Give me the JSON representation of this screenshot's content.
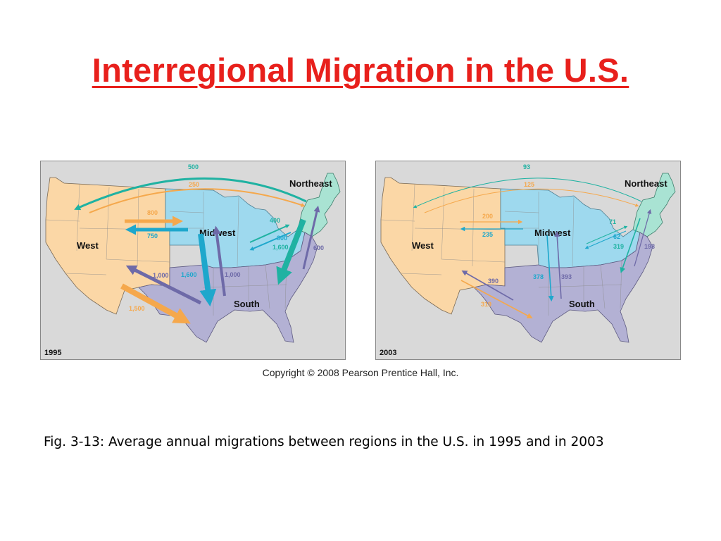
{
  "slide": {
    "title": "Interregional Migration in the U.S.",
    "copyright": "Copyright © 2008 Pearson Prentice Hall, Inc.",
    "caption": "Fig. 3-13: Average annual migrations between regions in the U.S. in 1995 and in 2003"
  },
  "colors": {
    "title": "#e8201c",
    "west_region": "#fbd7a6",
    "midwest_region": "#9ed9ee",
    "northeast_region": "#a9e3d3",
    "south_region": "#b3b1d4",
    "orange_flow": "#f5a84c",
    "blue_flow": "#1ea7cc",
    "teal_flow": "#1fb2a2",
    "purple_flow": "#6e6aa8"
  },
  "maps": [
    {
      "year": "1995",
      "regions": {
        "west": "West",
        "midwest": "Midwest",
        "south": "South",
        "northeast": "Northeast"
      },
      "flows": [
        {
          "from": "Northeast",
          "to": "West",
          "value": "500"
        },
        {
          "from": "West",
          "to": "Northeast",
          "value": "250"
        },
        {
          "from": "West",
          "to": "Midwest",
          "value": "800"
        },
        {
          "from": "Midwest",
          "to": "West",
          "value": "750"
        },
        {
          "from": "Midwest",
          "to": "Northeast",
          "value": "400"
        },
        {
          "from": "Northeast",
          "to": "Midwest",
          "value": "300"
        },
        {
          "from": "Northeast",
          "to": "South",
          "value": "1,600"
        },
        {
          "from": "South",
          "to": "Northeast",
          "value": "600"
        },
        {
          "from": "Midwest",
          "to": "South",
          "value": "1,600"
        },
        {
          "from": "South",
          "to": "Midwest",
          "value": "1,000"
        },
        {
          "from": "South",
          "to": "West",
          "value": "1,000"
        },
        {
          "from": "West",
          "to": "South",
          "value": "1,500"
        }
      ]
    },
    {
      "year": "2003",
      "regions": {
        "west": "West",
        "midwest": "Midwest",
        "south": "South",
        "northeast": "Northeast"
      },
      "flows": [
        {
          "from": "Northeast",
          "to": "West",
          "value": "93"
        },
        {
          "from": "West",
          "to": "Northeast",
          "value": "125"
        },
        {
          "from": "West",
          "to": "Midwest",
          "value": "200"
        },
        {
          "from": "Midwest",
          "to": "West",
          "value": "235"
        },
        {
          "from": "Midwest",
          "to": "Northeast",
          "value": "71"
        },
        {
          "from": "Northeast",
          "to": "Midwest",
          "value": "62"
        },
        {
          "from": "Northeast",
          "to": "South",
          "value": "319"
        },
        {
          "from": "South",
          "to": "Northeast",
          "value": "198"
        },
        {
          "from": "Midwest",
          "to": "South",
          "value": "378"
        },
        {
          "from": "South",
          "to": "Midwest",
          "value": "393"
        },
        {
          "from": "South",
          "to": "West",
          "value": "390"
        },
        {
          "from": "West",
          "to": "South",
          "value": "319"
        }
      ]
    }
  ]
}
